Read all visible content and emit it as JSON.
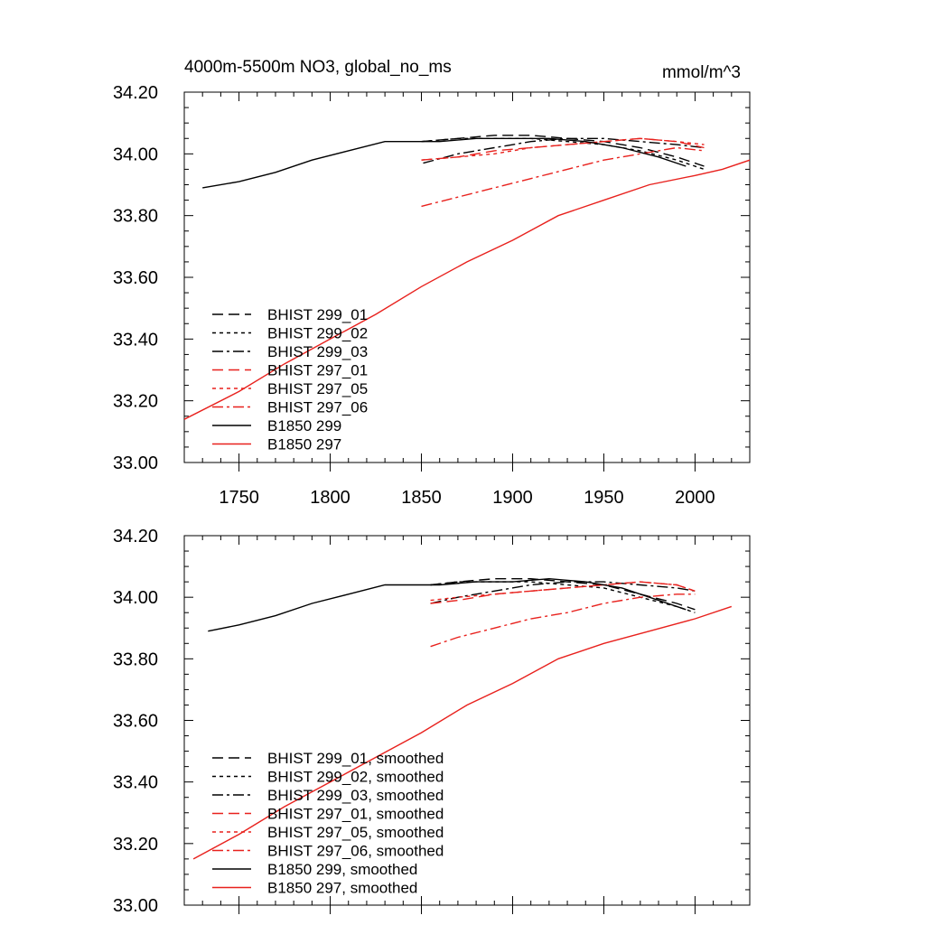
{
  "figure": {
    "title_left": "4000m-5500m NO3, global_no_ms",
    "title_right": "mmol/m^3"
  },
  "colors": {
    "black": "#000000",
    "red": "#e8211d"
  },
  "chart_data": [
    {
      "type": "line",
      "xlim": [
        1720,
        2030
      ],
      "ylim": [
        33.0,
        34.2
      ],
      "xticks": [
        1750,
        1800,
        1850,
        1900,
        1950,
        2000
      ],
      "xtick_labels": [
        "1750",
        "1800",
        "1850",
        "1900",
        "1950",
        "2000"
      ],
      "yticks": [
        33.0,
        33.2,
        33.4,
        33.6,
        33.8,
        34.0,
        34.2
      ],
      "ytick_labels": [
        "33.00",
        "33.20",
        "33.40",
        "33.60",
        "33.80",
        "34.00",
        "34.20"
      ],
      "legend_position": "bottom-left",
      "series": [
        {
          "name": "BHIST 299_01",
          "color": "black",
          "dash": "dash",
          "x": [
            1850,
            1870,
            1890,
            1910,
            1930,
            1950,
            1970,
            1990,
            2005
          ],
          "y": [
            34.04,
            34.05,
            34.06,
            34.06,
            34.05,
            34.04,
            34.02,
            33.99,
            33.96
          ]
        },
        {
          "name": "BHIST 299_02",
          "color": "black",
          "dash": "dot",
          "x": [
            1850,
            1870,
            1890,
            1910,
            1930,
            1950,
            1970,
            1990,
            2005
          ],
          "y": [
            34.04,
            34.05,
            34.05,
            34.05,
            34.04,
            34.03,
            34.01,
            33.98,
            33.95
          ]
        },
        {
          "name": "BHIST 299_03",
          "color": "black",
          "dash": "dashdot",
          "x": [
            1851,
            1870,
            1890,
            1910,
            1930,
            1950,
            1970,
            1990,
            2005
          ],
          "y": [
            33.97,
            34.0,
            34.02,
            34.04,
            34.05,
            34.05,
            34.04,
            34.03,
            34.02
          ]
        },
        {
          "name": "BHIST 297_01",
          "color": "red",
          "dash": "dash",
          "x": [
            1850,
            1870,
            1890,
            1910,
            1930,
            1950,
            1970,
            1990,
            2005
          ],
          "y": [
            33.98,
            33.99,
            34.01,
            34.02,
            34.03,
            34.04,
            34.05,
            34.04,
            34.02
          ]
        },
        {
          "name": "BHIST 297_05",
          "color": "red",
          "dash": "dot",
          "x": [
            1850,
            1870,
            1890,
            1910,
            1930,
            1950,
            1970,
            1990,
            2005
          ],
          "y": [
            33.98,
            33.99,
            34.0,
            34.02,
            34.03,
            34.04,
            34.05,
            34.04,
            34.03
          ]
        },
        {
          "name": "BHIST 297_06",
          "color": "red",
          "dash": "dashdot",
          "x": [
            1850,
            1870,
            1890,
            1910,
            1930,
            1950,
            1970,
            1990,
            2005
          ],
          "y": [
            33.83,
            33.86,
            33.89,
            33.92,
            33.95,
            33.98,
            34.0,
            34.02,
            34.01
          ]
        },
        {
          "name": "B1850 299",
          "color": "black",
          "dash": "solid",
          "x": [
            1730,
            1750,
            1770,
            1790,
            1810,
            1830,
            1840,
            1860,
            1880,
            1900,
            1920,
            1940,
            1960,
            1980,
            1995
          ],
          "y": [
            33.89,
            33.91,
            33.94,
            33.98,
            34.01,
            34.04,
            34.04,
            34.04,
            34.05,
            34.05,
            34.05,
            34.04,
            34.02,
            33.99,
            33.96
          ]
        },
        {
          "name": "B1850 297",
          "color": "red",
          "dash": "solid",
          "x": [
            1720,
            1750,
            1775,
            1800,
            1825,
            1850,
            1875,
            1900,
            1925,
            1950,
            1975,
            2000,
            2015,
            2030
          ],
          "y": [
            33.14,
            33.23,
            33.32,
            33.4,
            33.48,
            33.57,
            33.65,
            33.72,
            33.8,
            33.85,
            33.9,
            33.93,
            33.95,
            33.98
          ]
        }
      ]
    },
    {
      "type": "line",
      "xlim": [
        1720,
        2030
      ],
      "ylim": [
        33.0,
        34.2
      ],
      "xticks": [
        1750,
        1800,
        1850,
        1900,
        1950,
        2000
      ],
      "xtick_labels": [],
      "yticks": [
        33.0,
        33.2,
        33.4,
        33.6,
        33.8,
        34.0,
        34.2
      ],
      "ytick_labels": [
        "33.00",
        "33.20",
        "33.40",
        "33.60",
        "33.80",
        "34.00",
        "34.20"
      ],
      "legend_position": "bottom-left",
      "series": [
        {
          "name": "BHIST 299_01, smoothed",
          "color": "black",
          "dash": "dash",
          "x": [
            1855,
            1870,
            1890,
            1910,
            1930,
            1950,
            1970,
            1990,
            2000
          ],
          "y": [
            34.04,
            34.05,
            34.06,
            34.06,
            34.05,
            34.04,
            34.01,
            33.98,
            33.96
          ]
        },
        {
          "name": "BHIST 299_02, smoothed",
          "color": "black",
          "dash": "dot",
          "x": [
            1855,
            1870,
            1890,
            1910,
            1930,
            1950,
            1970,
            1990,
            2000
          ],
          "y": [
            34.04,
            34.05,
            34.05,
            34.05,
            34.04,
            34.03,
            34.0,
            33.97,
            33.95
          ]
        },
        {
          "name": "BHIST 299_03, smoothed",
          "color": "black",
          "dash": "dashdot",
          "x": [
            1855,
            1870,
            1890,
            1910,
            1930,
            1950,
            1970,
            1990,
            2000
          ],
          "y": [
            33.98,
            34.0,
            34.02,
            34.04,
            34.05,
            34.05,
            34.04,
            34.03,
            34.02
          ]
        },
        {
          "name": "BHIST 297_01, smoothed",
          "color": "red",
          "dash": "dash",
          "x": [
            1855,
            1870,
            1890,
            1910,
            1930,
            1950,
            1970,
            1990,
            2000
          ],
          "y": [
            33.98,
            33.99,
            34.01,
            34.02,
            34.03,
            34.04,
            34.05,
            34.04,
            34.02
          ]
        },
        {
          "name": "BHIST 297_05, smoothed",
          "color": "red",
          "dash": "dot",
          "x": [
            1855,
            1870,
            1890,
            1910,
            1930,
            1950,
            1970,
            1990,
            2000
          ],
          "y": [
            33.99,
            34.0,
            34.01,
            34.02,
            34.03,
            34.04,
            34.05,
            34.04,
            34.02
          ]
        },
        {
          "name": "BHIST 297_06, smoothed",
          "color": "red",
          "dash": "dashdot",
          "x": [
            1855,
            1870,
            1890,
            1910,
            1930,
            1950,
            1970,
            1990,
            2000
          ],
          "y": [
            33.84,
            33.87,
            33.9,
            33.93,
            33.95,
            33.98,
            34.0,
            34.01,
            34.01
          ]
        },
        {
          "name": "B1850 299, smoothed",
          "color": "black",
          "dash": "solid",
          "x": [
            1733,
            1750,
            1770,
            1790,
            1810,
            1830,
            1840,
            1860,
            1880,
            1900,
            1920,
            1940,
            1960,
            1980,
            1995
          ],
          "y": [
            33.89,
            33.91,
            33.94,
            33.98,
            34.01,
            34.04,
            34.04,
            34.04,
            34.05,
            34.05,
            34.06,
            34.05,
            34.03,
            33.99,
            33.96
          ]
        },
        {
          "name": "B1850 297, smoothed",
          "color": "red",
          "dash": "solid",
          "x": [
            1725,
            1750,
            1775,
            1800,
            1825,
            1850,
            1875,
            1900,
            1925,
            1950,
            1975,
            2000,
            2020
          ],
          "y": [
            33.15,
            33.23,
            33.32,
            33.4,
            33.48,
            33.56,
            33.65,
            33.72,
            33.8,
            33.85,
            33.89,
            33.93,
            33.97
          ]
        }
      ]
    }
  ]
}
